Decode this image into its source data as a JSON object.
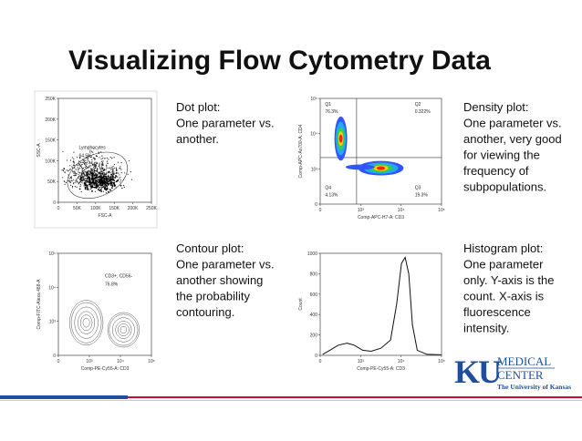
{
  "title": "Visualizing Flow Cytometry Data",
  "panels": [
    {
      "lines": [
        "Dot plot:",
        "One parameter vs.",
        "another."
      ],
      "plot": {
        "ylabel": "SSC-A",
        "xlabel": "FSC-A",
        "yticks": [
          "0",
          "50K",
          "100K",
          "150K",
          "200K",
          "250K"
        ],
        "xticks": [
          "0",
          "50K",
          "100K",
          "150K",
          "200K",
          "250K"
        ],
        "labels": [
          "Lymphocytes",
          "64.5%"
        ]
      }
    },
    {
      "lines": [
        "Density plot:",
        "One parameter vs.",
        "another, very good",
        "for viewing the",
        "frequency of",
        "subpopulations."
      ],
      "plot": {
        "ylabel": "Comp-APC-Ax700-A: CD4",
        "xlabel": "Comp-APC-H7-A: CD3",
        "yticks": [
          "0",
          "10³",
          "10⁴",
          "10⁵"
        ],
        "xticks": [
          "0",
          "10³",
          "10⁴",
          "10⁵"
        ],
        "labels": [
          "Q1",
          "76.3%",
          "Q2",
          "0.322%",
          "Q4",
          "4.13%",
          "Q3",
          "19.3%"
        ]
      }
    },
    {
      "lines": [
        "Contour plot:",
        "One parameter vs.",
        "another showing",
        "the probability",
        "contouring."
      ],
      "plot": {
        "ylabel": "Comp-FITC-Alexa 488-A",
        "xlabel": "Comp-PE-Cy55-A: CD3",
        "yticks": [
          "0",
          "10³",
          "10⁴",
          "10⁵"
        ],
        "xticks": [
          "0",
          "10³",
          "10⁴",
          "10⁵"
        ],
        "labels": [
          "CD3+, CD56-",
          "76.8%"
        ]
      }
    },
    {
      "lines": [
        "Histogram plot:",
        "One parameter",
        "only. Y-axis is the",
        "count. X-axis is",
        "fluorescence",
        "intensity."
      ],
      "plot": {
        "ylabel": "Count",
        "xlabel": "Comp-PE-Cy55-A: CD3",
        "yticks": [
          "0",
          "200",
          "400",
          "600",
          "800",
          "1000"
        ],
        "xticks": [
          "0",
          "10³",
          "10⁴",
          "10⁵"
        ],
        "labels": []
      }
    }
  ],
  "logo": {
    "mark": "KU",
    "line1": "MEDICAL",
    "line2": "CENTER",
    "line3": "The University of Kansas"
  }
}
